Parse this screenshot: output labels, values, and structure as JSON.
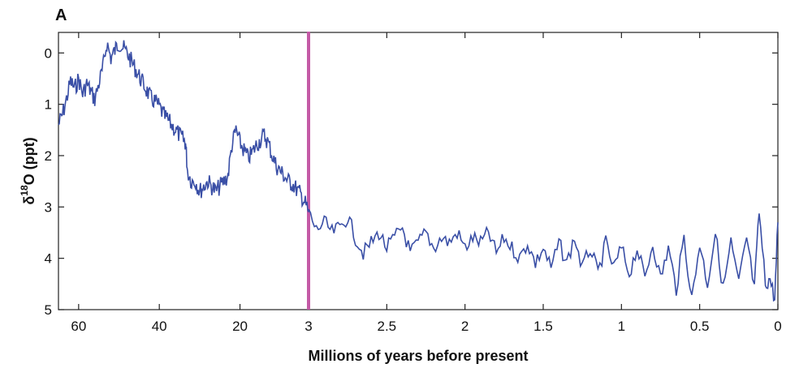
{
  "chart_data": {
    "type": "line",
    "panel_label": "A",
    "xlabel": "Millions of years before present",
    "ylabel": {
      "base": "δ",
      "sup": "18",
      "rest": "O (ppt)"
    },
    "y_inverted": true,
    "ylim": [
      -0.4,
      5
    ],
    "y_ticks": [
      0,
      1,
      2,
      3,
      4,
      5
    ],
    "y_tick_labels": [
      "0",
      "1",
      "2",
      "3",
      "4",
      "5"
    ],
    "x_ticks_left_segment": [
      60,
      40,
      20,
      3
    ],
    "x_ticks_left_labels": [
      "60",
      "40",
      "20",
      "3"
    ],
    "x_ticks_right_segment": [
      3,
      2.5,
      2,
      1.5,
      1,
      0.5,
      0
    ],
    "x_ticks_right_labels": [
      "3",
      "2.5",
      "2",
      "1.5",
      "1",
      "0.5",
      "0"
    ],
    "x_axis_note": "broken scale: 65–3 Ma compressed (left), 3–0 Ma expanded (right)",
    "xlim": [
      65,
      0
    ],
    "grid": false,
    "marker_line": {
      "x": 3,
      "color": "#c45aa6"
    },
    "series": [
      {
        "color": "#3a4fa6",
        "points_left": [
          [
            65,
            1.4
          ],
          [
            64,
            1.2
          ],
          [
            63,
            0.9
          ],
          [
            62,
            0.55
          ],
          [
            61,
            0.7
          ],
          [
            60,
            0.5
          ],
          [
            59,
            0.8
          ],
          [
            58,
            0.6
          ],
          [
            57,
            0.75
          ],
          [
            56,
            0.9
          ],
          [
            55,
            0.6
          ],
          [
            54,
            0.3
          ],
          [
            53,
            -0.2
          ],
          [
            52,
            0.1
          ],
          [
            51,
            -0.05
          ],
          [
            50,
            -0.2
          ],
          [
            49,
            -0.1
          ],
          [
            48,
            0.0
          ],
          [
            47,
            0.15
          ],
          [
            46,
            0.3
          ],
          [
            45,
            0.45
          ],
          [
            44,
            0.6
          ],
          [
            43,
            0.75
          ],
          [
            42,
            0.9
          ],
          [
            41,
            0.95
          ],
          [
            40,
            1.05
          ],
          [
            39,
            1.2
          ],
          [
            38,
            1.3
          ],
          [
            37,
            1.4
          ],
          [
            36,
            1.5
          ],
          [
            35,
            1.6
          ],
          [
            34,
            1.7
          ],
          [
            33.5,
            1.75
          ],
          [
            33,
            2.3
          ],
          [
            32,
            2.5
          ],
          [
            31,
            2.5
          ],
          [
            30,
            2.7
          ],
          [
            29,
            2.6
          ],
          [
            28,
            2.5
          ],
          [
            27,
            2.6
          ],
          [
            26,
            2.7
          ],
          [
            25,
            2.6
          ],
          [
            24,
            2.5
          ],
          [
            23,
            2.4
          ],
          [
            22,
            1.8
          ],
          [
            21,
            1.5
          ],
          [
            20,
            1.75
          ],
          [
            19,
            1.9
          ],
          [
            18,
            2.05
          ],
          [
            17,
            1.95
          ],
          [
            16,
            1.8
          ],
          [
            15,
            1.7
          ],
          [
            14,
            1.6
          ],
          [
            13,
            1.75
          ],
          [
            12,
            2.0
          ],
          [
            11,
            2.2
          ],
          [
            10,
            2.3
          ],
          [
            9,
            2.4
          ],
          [
            8,
            2.5
          ],
          [
            7,
            2.55
          ],
          [
            6,
            2.65
          ],
          [
            5,
            2.75
          ],
          [
            4,
            2.9
          ],
          [
            3,
            3.1
          ]
        ],
        "points_right": [
          [
            3.0,
            3.1
          ],
          [
            2.95,
            3.45
          ],
          [
            2.9,
            3.3
          ],
          [
            2.85,
            3.5
          ],
          [
            2.8,
            3.4
          ],
          [
            2.75,
            3.2
          ],
          [
            2.7,
            3.6
          ],
          [
            2.65,
            3.9
          ],
          [
            2.6,
            3.7
          ],
          [
            2.55,
            3.5
          ],
          [
            2.5,
            3.8
          ],
          [
            2.45,
            3.6
          ],
          [
            2.4,
            3.4
          ],
          [
            2.35,
            3.9
          ],
          [
            2.3,
            3.7
          ],
          [
            2.25,
            3.5
          ],
          [
            2.2,
            3.8
          ],
          [
            2.15,
            3.6
          ],
          [
            2.1,
            3.7
          ],
          [
            2.05,
            3.5
          ],
          [
            2.0,
            3.8
          ],
          [
            1.95,
            3.6
          ],
          [
            1.9,
            3.7
          ],
          [
            1.85,
            3.5
          ],
          [
            1.8,
            3.9
          ],
          [
            1.75,
            3.6
          ],
          [
            1.7,
            3.8
          ],
          [
            1.65,
            4.0
          ],
          [
            1.6,
            3.7
          ],
          [
            1.55,
            4.1
          ],
          [
            1.5,
            3.8
          ],
          [
            1.45,
            4.2
          ],
          [
            1.4,
            3.7
          ],
          [
            1.35,
            4.1
          ],
          [
            1.3,
            3.6
          ],
          [
            1.25,
            4.2
          ],
          [
            1.2,
            3.8
          ],
          [
            1.15,
            4.3
          ],
          [
            1.1,
            3.7
          ],
          [
            1.05,
            4.2
          ],
          [
            1.0,
            3.8
          ],
          [
            0.95,
            4.3
          ],
          [
            0.9,
            3.8
          ],
          [
            0.85,
            4.4
          ],
          [
            0.8,
            3.7
          ],
          [
            0.75,
            4.4
          ],
          [
            0.7,
            3.8
          ],
          [
            0.65,
            4.6
          ],
          [
            0.6,
            3.6
          ],
          [
            0.55,
            4.8
          ],
          [
            0.5,
            3.7
          ],
          [
            0.45,
            4.5
          ],
          [
            0.4,
            3.5
          ],
          [
            0.35,
            4.6
          ],
          [
            0.3,
            3.7
          ],
          [
            0.25,
            4.5
          ],
          [
            0.2,
            3.6
          ],
          [
            0.15,
            4.6
          ],
          [
            0.12,
            3.1
          ],
          [
            0.08,
            4.5
          ],
          [
            0.05,
            4.4
          ],
          [
            0.02,
            4.8
          ],
          [
            0.0,
            3.3
          ]
        ]
      }
    ]
  }
}
